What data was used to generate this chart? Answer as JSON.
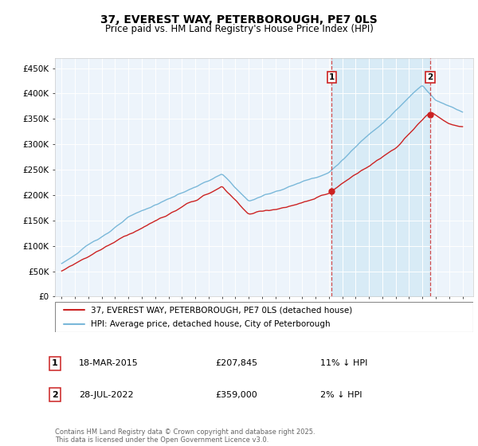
{
  "title": "37, EVEREST WAY, PETERBOROUGH, PE7 0LS",
  "subtitle": "Price paid vs. HM Land Registry's House Price Index (HPI)",
  "ylim": [
    0,
    470000
  ],
  "yticks": [
    0,
    50000,
    100000,
    150000,
    200000,
    250000,
    300000,
    350000,
    400000,
    450000
  ],
  "ytick_labels": [
    "£0",
    "£50K",
    "£100K",
    "£150K",
    "£200K",
    "£250K",
    "£300K",
    "£350K",
    "£400K",
    "£450K"
  ],
  "hpi_color": "#7ab8d9",
  "price_color": "#cc2222",
  "vline_color": "#cc2222",
  "shade_color": "#d0e8f5",
  "sale1_date_num": 2015.21,
  "sale1_price": 207845,
  "sale2_date_num": 2022.57,
  "sale2_price": 359000,
  "legend_label_price": "37, EVEREST WAY, PETERBOROUGH, PE7 0LS (detached house)",
  "legend_label_hpi": "HPI: Average price, detached house, City of Peterborough",
  "note1_date": "18-MAR-2015",
  "note1_price": "£207,845",
  "note1_hpi": "11% ↓ HPI",
  "note2_date": "28-JUL-2022",
  "note2_price": "£359,000",
  "note2_hpi": "2% ↓ HPI",
  "footer": "Contains HM Land Registry data © Crown copyright and database right 2025.\nThis data is licensed under the Open Government Licence v3.0.",
  "plot_bg_color": "#edf4fb",
  "title_fontsize": 10,
  "subtitle_fontsize": 8.5
}
